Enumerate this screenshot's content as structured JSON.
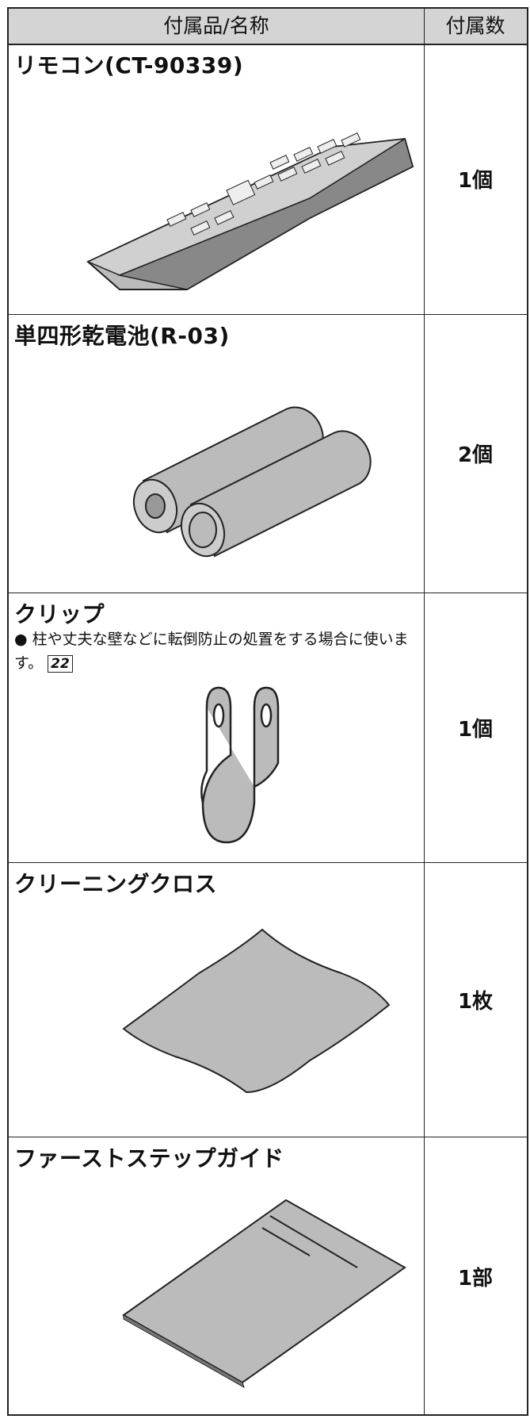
{
  "header": {
    "name": "付属品/名称",
    "count": "付属数"
  },
  "rows": [
    {
      "name": "リモコン(CT-90339)",
      "count": "1個"
    },
    {
      "name": "単四形乾電池(R-03)",
      "count": "2個"
    },
    {
      "name": "クリップ",
      "count": "1個",
      "note": "柱や丈夫な壁などに転倒防止の処置をする場合に使います。",
      "ref": "22"
    },
    {
      "name": "クリーニングクロス",
      "count": "1枚"
    },
    {
      "name": "ファーストステップガイド",
      "count": "1部"
    }
  ]
}
